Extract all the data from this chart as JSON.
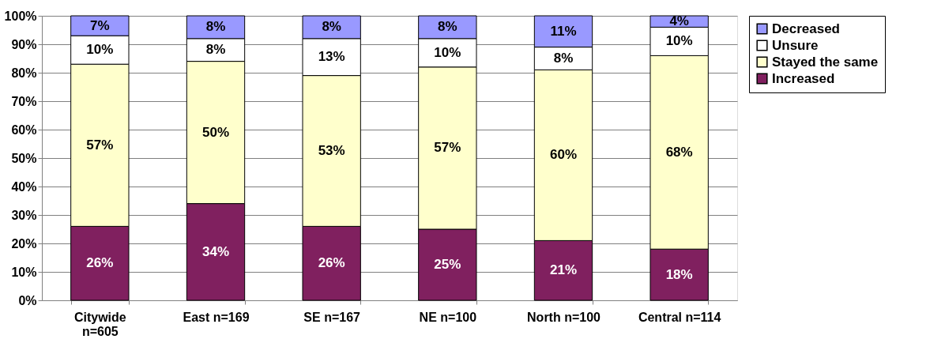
{
  "chart_data": {
    "type": "bar",
    "stacked": true,
    "data_labels": false,
    "grid": "y",
    "legend": "right",
    "categories": [
      "Citywide n=605",
      "East n=169",
      "SE n=167",
      "NE n=100",
      "North n=100",
      "Central n=114"
    ],
    "series": [
      {
        "name": "Increased",
        "color": "#80205f",
        "values": [
          26,
          34,
          26,
          25,
          21,
          18
        ],
        "value_labels": [
          "26%",
          "34%",
          "26%",
          "25%",
          "21%",
          "18%"
        ]
      },
      {
        "name": "Stayed the same",
        "color": "#ffffcc",
        "values": [
          57,
          50,
          53,
          57,
          60,
          68
        ],
        "value_labels": [
          "57%",
          "50%",
          "53%",
          "57%",
          "60%",
          "68%"
        ]
      },
      {
        "name": "Unsure",
        "color": "#ffffff",
        "values": [
          10,
          8,
          13,
          10,
          8,
          10
        ],
        "value_labels": [
          "10%",
          "8%",
          "13%",
          "10%",
          "8%",
          "10%"
        ]
      },
      {
        "name": "Decreased",
        "color": "#9999ff",
        "values": [
          7,
          8,
          8,
          8,
          11,
          4
        ],
        "value_labels": [
          "7%",
          "8%",
          "8%",
          "8%",
          "11%",
          "4%"
        ]
      }
    ],
    "ylim": [
      0,
      100
    ],
    "yticks": [
      {
        "value": 0,
        "label": "0%"
      },
      {
        "value": 10,
        "label": "10%"
      },
      {
        "value": 20,
        "label": "20%"
      },
      {
        "value": 30,
        "label": "30%"
      },
      {
        "value": 40,
        "label": "40%"
      },
      {
        "value": 50,
        "label": "50%"
      },
      {
        "value": 60,
        "label": "60%"
      },
      {
        "value": 70,
        "label": "70%"
      },
      {
        "value": 80,
        "label": "80%"
      },
      {
        "value": 90,
        "label": "90%"
      },
      {
        "value": 100,
        "label": "100%"
      }
    ]
  }
}
